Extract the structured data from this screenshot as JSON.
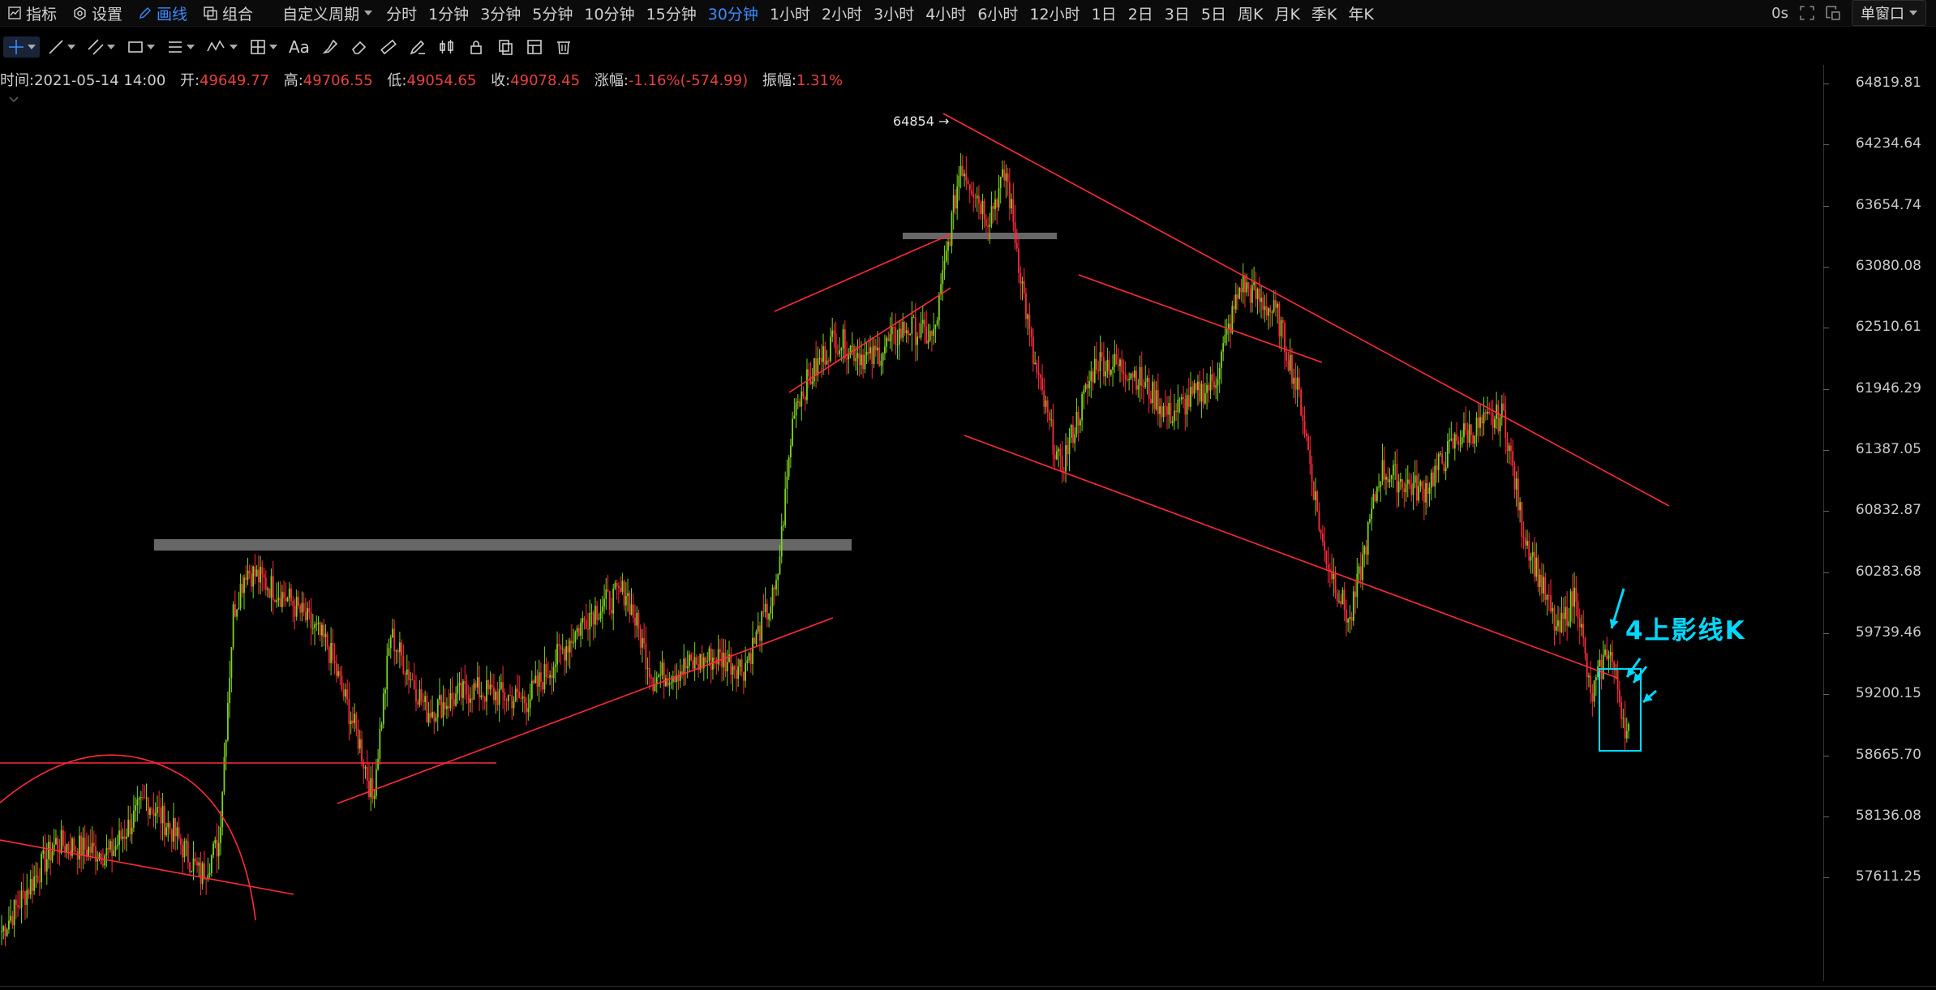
{
  "toolbar": {
    "indicators_label": "指标",
    "settings_label": "设置",
    "draw_label": "画线",
    "combine_label": "组合",
    "custom_period_label": "自定义周期",
    "periods": [
      "分时",
      "1分钟",
      "3分钟",
      "5分钟",
      "10分钟",
      "15分钟",
      "30分钟",
      "1小时",
      "2小时",
      "3小时",
      "4小时",
      "6小时",
      "12小时",
      "1日",
      "2日",
      "3日",
      "5日",
      "周K",
      "月K",
      "季K",
      "年K"
    ],
    "active_period": "30分钟",
    "timer": "0s",
    "window_mode": "单窗口"
  },
  "draw_tools": {
    "text_tool_label": "Aa"
  },
  "ohlc": {
    "time_label": "时间:",
    "time_value": "2021-05-14 14:00",
    "open_label": "开:",
    "open_value": "49649.77",
    "high_label": "高:",
    "high_value": "49706.55",
    "low_label": "低:",
    "low_value": "49054.65",
    "close_label": "收:",
    "close_value": "49078.45",
    "change_label": "涨幅:",
    "change_value": "-1.16%(-574.99)",
    "amplitude_label": "振幅:",
    "amplitude_value": "1.31%"
  },
  "price_axis": {
    "labels": [
      "64819.81",
      "64234.64",
      "63654.74",
      "63080.08",
      "62510.61",
      "61946.29",
      "61387.05",
      "60832.87",
      "60283.68",
      "59739.46",
      "59200.15",
      "58665.70",
      "58136.08",
      "57611.25"
    ]
  },
  "chart": {
    "peak_label": "64854 →",
    "annotation": "4上影线K",
    "colors": {
      "up": "#7ed321",
      "down": "#ff2a3c",
      "trendline": "#ff2a3c",
      "annotation": "#00d9ff",
      "zone": "#8a8a8a"
    }
  },
  "chart_data": {
    "type": "candlestick",
    "price_min": 57000,
    "price_max": 65300,
    "key_points": [
      {
        "i": 0,
        "p": 57500
      },
      {
        "i": 30,
        "p": 58300
      },
      {
        "i": 60,
        "p": 58200
      },
      {
        "i": 80,
        "p": 58700
      },
      {
        "i": 95,
        "p": 58400
      },
      {
        "i": 110,
        "p": 58000
      },
      {
        "i": 120,
        "p": 58300
      },
      {
        "i": 128,
        "p": 60400
      },
      {
        "i": 135,
        "p": 60800
      },
      {
        "i": 160,
        "p": 60500
      },
      {
        "i": 180,
        "p": 60100
      },
      {
        "i": 198,
        "p": 59200
      },
      {
        "i": 205,
        "p": 58700
      },
      {
        "i": 215,
        "p": 60200
      },
      {
        "i": 235,
        "p": 59500
      },
      {
        "i": 260,
        "p": 59700
      },
      {
        "i": 290,
        "p": 59600
      },
      {
        "i": 325,
        "p": 60400
      },
      {
        "i": 345,
        "p": 60600
      },
      {
        "i": 360,
        "p": 59800
      },
      {
        "i": 395,
        "p": 60000
      },
      {
        "i": 410,
        "p": 59900
      },
      {
        "i": 428,
        "p": 60600
      },
      {
        "i": 438,
        "p": 62300
      },
      {
        "i": 460,
        "p": 62900
      },
      {
        "i": 480,
        "p": 62700
      },
      {
        "i": 500,
        "p": 63000
      },
      {
        "i": 515,
        "p": 62900
      },
      {
        "i": 530,
        "p": 64500
      },
      {
        "i": 545,
        "p": 64000
      },
      {
        "i": 555,
        "p": 64400
      },
      {
        "i": 570,
        "p": 62700
      },
      {
        "i": 585,
        "p": 61700
      },
      {
        "i": 605,
        "p": 62700
      },
      {
        "i": 625,
        "p": 62600
      },
      {
        "i": 645,
        "p": 62200
      },
      {
        "i": 670,
        "p": 62500
      },
      {
        "i": 685,
        "p": 63400
      },
      {
        "i": 705,
        "p": 63100
      },
      {
        "i": 718,
        "p": 62300
      },
      {
        "i": 730,
        "p": 61000
      },
      {
        "i": 745,
        "p": 60300
      },
      {
        "i": 762,
        "p": 61700
      },
      {
        "i": 785,
        "p": 61500
      },
      {
        "i": 805,
        "p": 62000
      },
      {
        "i": 830,
        "p": 62200
      },
      {
        "i": 840,
        "p": 61200
      },
      {
        "i": 860,
        "p": 60200
      },
      {
        "i": 870,
        "p": 60600
      },
      {
        "i": 878,
        "p": 59600
      },
      {
        "i": 888,
        "p": 60100
      },
      {
        "i": 898,
        "p": 59300
      }
    ],
    "last_candle": {
      "time": "2021-05-14 14:00",
      "open": 49649.77,
      "high": 49706.55,
      "low": 49054.65,
      "close": 49078.45
    }
  }
}
